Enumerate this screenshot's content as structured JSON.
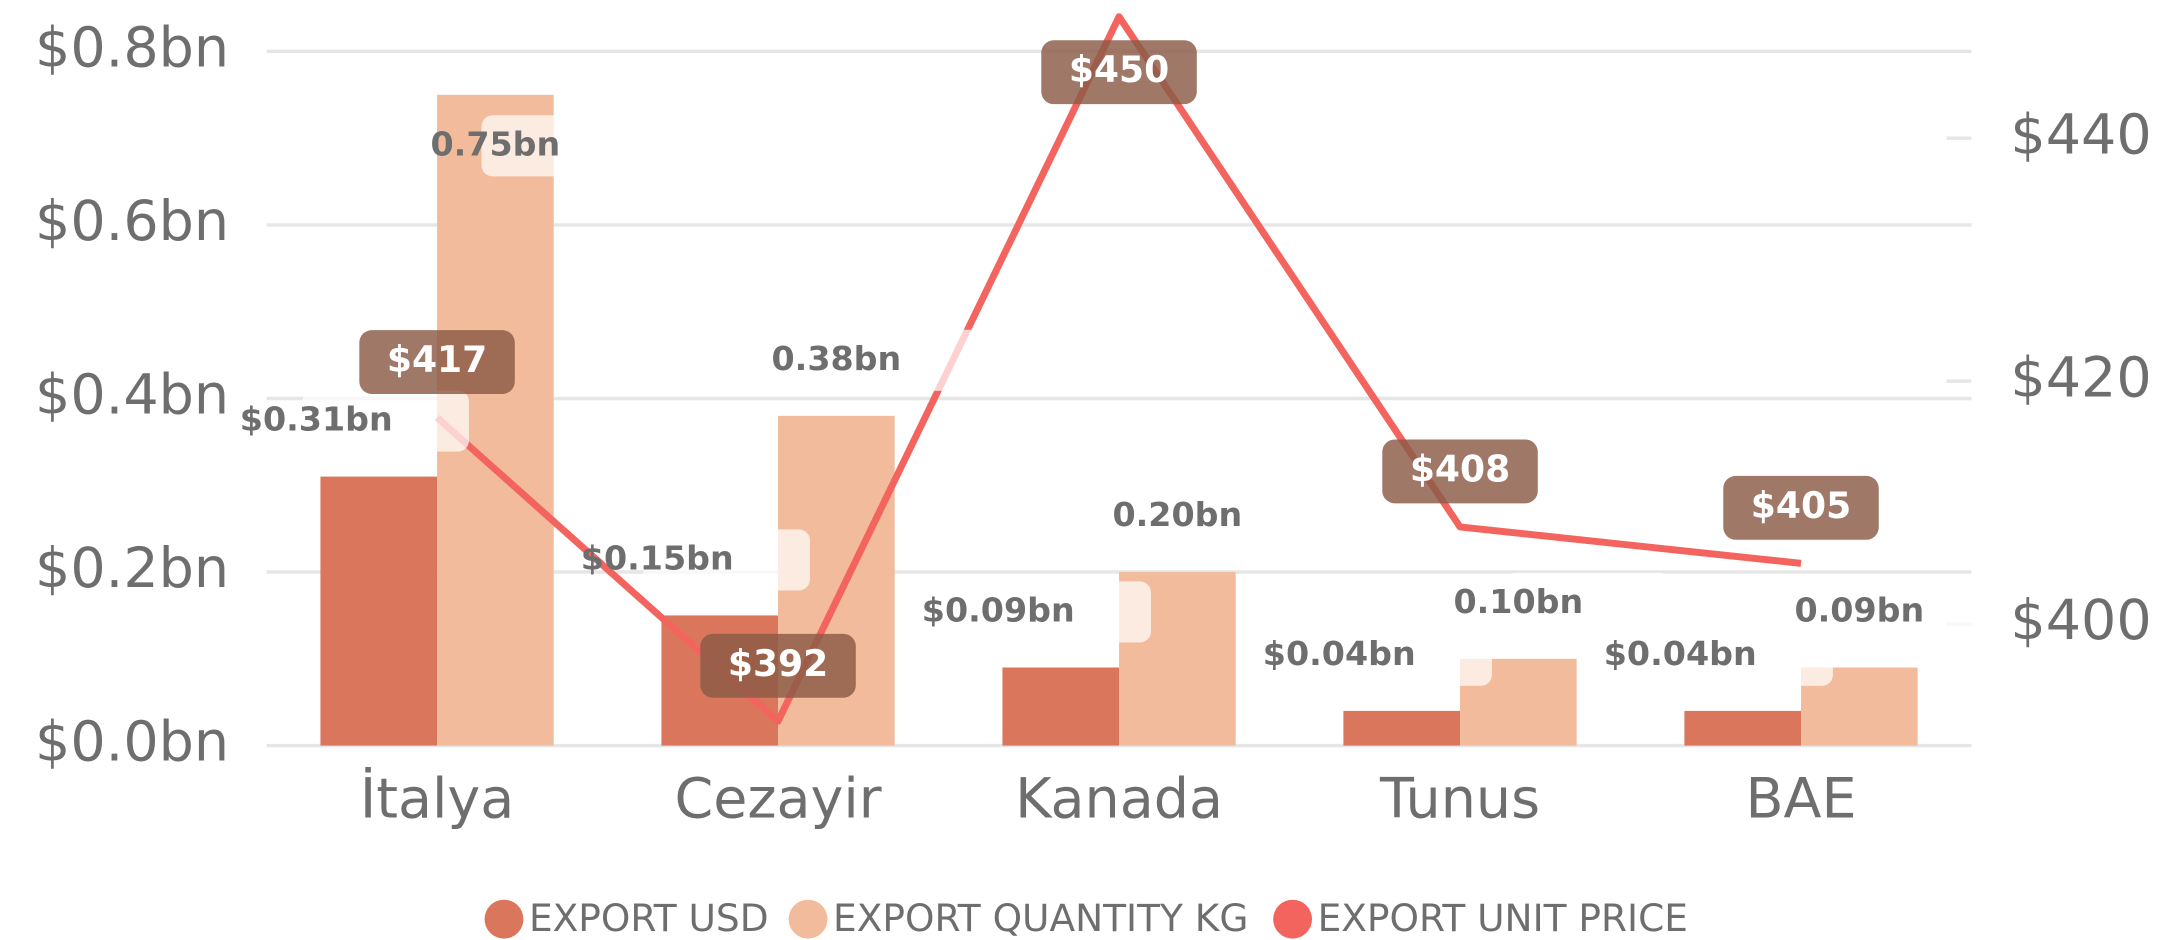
{
  "chart_data": {
    "type": "bar",
    "categories": [
      "İtalya",
      "Cezayir",
      "Kanada",
      "Tunus",
      "BAE"
    ],
    "series": [
      {
        "name": "EXPORT USD",
        "type": "bar",
        "color": "#d9765c",
        "values": [
          0.31,
          0.15,
          0.09,
          0.04,
          0.04
        ],
        "value_labels": [
          "$0.31bn",
          "$0.15bn",
          "$0.09bn",
          "$0.04bn",
          "$0.04bn"
        ]
      },
      {
        "name": "EXPORT QUANTITY KG",
        "type": "bar",
        "color": "#f2bb9b",
        "values": [
          0.75,
          0.38,
          0.2,
          0.1,
          0.09
        ],
        "value_labels": [
          "0.75bn",
          "0.38bn",
          "0.20bn",
          "0.10bn",
          "0.09bn"
        ]
      },
      {
        "name": "EXPORT UNIT PRICE",
        "type": "line",
        "axis": "y2",
        "color": "#f4645f",
        "values": [
          417,
          392,
          450,
          408,
          405
        ],
        "value_labels": [
          "$417",
          "$392",
          "$450",
          "$408",
          "$405"
        ]
      }
    ],
    "ylim": [
      0,
      0.84
    ],
    "yticks": [
      {
        "value": 0,
        "label": "$0.0bn"
      },
      {
        "value": 0.2,
        "label": "$0.2bn"
      },
      {
        "value": 0.4,
        "label": "$0.4bn"
      },
      {
        "value": 0.6,
        "label": "$0.6bn"
      },
      {
        "value": 0.8,
        "label": "$0.8bn"
      }
    ],
    "y2lim": [
      390,
      450
    ],
    "y2ticks": [
      {
        "value": 400,
        "label": "$400"
      },
      {
        "value": 420,
        "label": "$420"
      },
      {
        "value": 440,
        "label": "$440"
      }
    ],
    "grid": true,
    "legend": "bottom"
  }
}
